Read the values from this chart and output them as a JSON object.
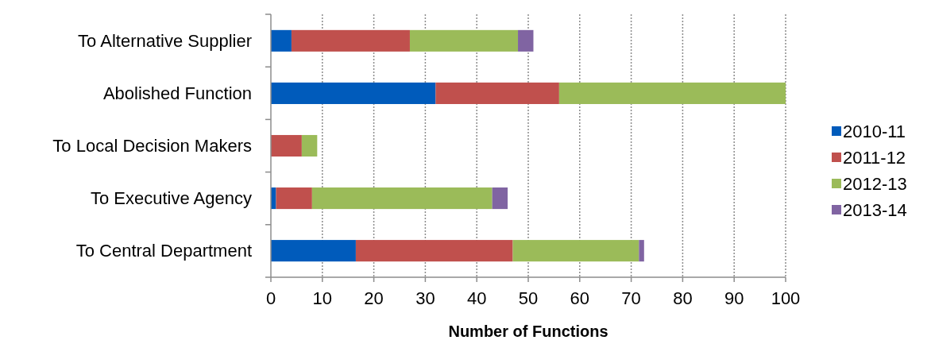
{
  "chart_data": {
    "type": "bar",
    "orientation": "horizontal",
    "stacked": true,
    "categories": [
      "To Alternative Supplier",
      "Abolished Function",
      "To Local Decision Makers",
      "To Executive Agency",
      "To Central Department"
    ],
    "series": [
      {
        "name": "2010-11",
        "color": "#005bbb",
        "values": [
          4,
          32,
          0,
          1,
          16.5
        ]
      },
      {
        "name": "2011-12",
        "color": "#c0504d",
        "values": [
          23,
          24,
          6,
          7,
          30.5
        ]
      },
      {
        "name": "2012-13",
        "color": "#9bbb59",
        "values": [
          21,
          44,
          3,
          35,
          24.5
        ]
      },
      {
        "name": "2013-14",
        "color": "#8064a2",
        "values": [
          3,
          0,
          0,
          3,
          1
        ]
      }
    ],
    "xlabel": "Number of Functions",
    "xlim": [
      0,
      100
    ],
    "xticks": [
      0,
      10,
      20,
      30,
      40,
      50,
      60,
      70,
      80,
      90,
      100
    ],
    "grid": "x",
    "legend": "right"
  }
}
